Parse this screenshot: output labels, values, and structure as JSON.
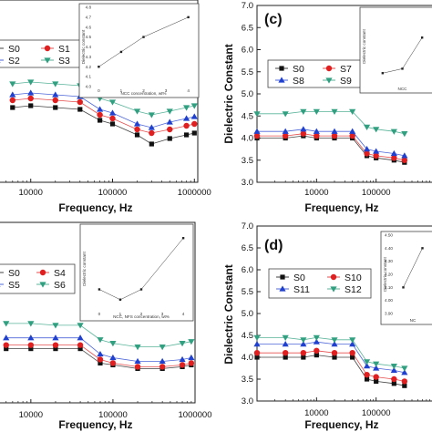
{
  "chart_data": [
    {
      "id": "b",
      "type": "scatter",
      "panel_label": "",
      "xlabel": "Frequency, Hz",
      "ylabel": "",
      "xscale": "log",
      "xlim": [
        4000,
        1100000
      ],
      "ylim": [
        2.0,
        7.0
      ],
      "x_tick_labels": [
        "10000",
        "100000",
        "1000000"
      ],
      "y_tick_labels": [],
      "legend_position": "top-left",
      "series": [
        {
          "name": "S0",
          "marker": "square",
          "color": "#111111",
          "x": [
            6000,
            10000,
            20000,
            40000,
            70000,
            100000,
            200000,
            300000,
            500000,
            800000,
            1000000
          ],
          "y": [
            4.05,
            4.1,
            4.05,
            4.0,
            3.7,
            3.6,
            3.3,
            3.05,
            3.2,
            3.3,
            3.35
          ]
        },
        {
          "name": "S1",
          "marker": "circle",
          "color": "#e02020",
          "x": [
            6000,
            10000,
            20000,
            40000,
            70000,
            100000,
            200000,
            300000,
            500000,
            800000,
            1000000
          ],
          "y": [
            4.25,
            4.3,
            4.25,
            4.2,
            3.85,
            3.75,
            3.45,
            3.35,
            3.45,
            3.55,
            3.6
          ]
        },
        {
          "name": "S2",
          "marker": "triangle",
          "color": "#2040d0",
          "x": [
            6000,
            10000,
            20000,
            40000,
            70000,
            100000,
            200000,
            300000,
            500000,
            800000,
            1000000
          ],
          "y": [
            4.4,
            4.45,
            4.4,
            4.35,
            4.0,
            3.9,
            3.6,
            3.5,
            3.65,
            3.75,
            3.8
          ]
        },
        {
          "name": "S3",
          "marker": "triangle-down",
          "color": "#30a080",
          "x": [
            6000,
            10000,
            20000,
            40000,
            70000,
            100000,
            200000,
            300000,
            500000,
            800000,
            1000000
          ],
          "y": [
            4.7,
            4.75,
            4.7,
            4.65,
            4.3,
            4.2,
            3.95,
            3.85,
            3.95,
            4.05,
            4.1
          ]
        }
      ],
      "inset": {
        "xlabel": "NCC concentration, wt%",
        "ylabel": "Dielectric constant",
        "x": [
          0,
          1,
          2,
          4
        ],
        "y": [
          4.2,
          4.35,
          4.5,
          4.7
        ],
        "xlim": [
          -0.3,
          4.3
        ],
        "ylim": [
          4.0,
          4.8
        ],
        "x_tick_labels": [
          "0",
          "1",
          "2",
          "3",
          "4"
        ],
        "y_tick_labels": [
          "4.0",
          "4.1",
          "4.2",
          "4.3",
          "4.4",
          "4.5",
          "4.6",
          "4.7",
          "4.8"
        ]
      }
    },
    {
      "id": "c",
      "type": "scatter",
      "panel_label": "(c)",
      "xlabel": "Frequency, Hz",
      "ylabel": "Dielectric Constant",
      "xscale": "log",
      "xlim": [
        1000,
        1000000
      ],
      "ylim": [
        3.0,
        7.0
      ],
      "x_tick_labels": [
        "10000",
        "100000"
      ],
      "y_tick_labels": [
        "3.0",
        "3.5",
        "4.0",
        "4.5",
        "5.0",
        "5.5",
        "6.0",
        "6.5",
        "7.0"
      ],
      "legend_position": "center",
      "series": [
        {
          "name": "S0",
          "marker": "square",
          "color": "#111111",
          "x": [
            1000,
            3000,
            6000,
            10000,
            20000,
            40000,
            70000,
            100000,
            200000,
            300000
          ],
          "y": [
            4.0,
            4.0,
            4.05,
            4.0,
            4.0,
            4.0,
            3.6,
            3.55,
            3.5,
            3.45
          ]
        },
        {
          "name": "S7",
          "marker": "circle",
          "color": "#e02020",
          "x": [
            1000,
            3000,
            6000,
            10000,
            20000,
            40000,
            70000,
            100000,
            200000,
            300000
          ],
          "y": [
            4.05,
            4.05,
            4.1,
            4.05,
            4.05,
            4.05,
            3.65,
            3.6,
            3.55,
            3.5
          ]
        },
        {
          "name": "S8",
          "marker": "triangle",
          "color": "#2040d0",
          "x": [
            1000,
            3000,
            6000,
            10000,
            20000,
            40000,
            70000,
            100000,
            200000,
            300000
          ],
          "y": [
            4.15,
            4.15,
            4.2,
            4.15,
            4.15,
            4.15,
            3.75,
            3.7,
            3.65,
            3.6
          ]
        },
        {
          "name": "S9",
          "marker": "triangle-down",
          "color": "#30a080",
          "x": [
            1000,
            3000,
            6000,
            10000,
            20000,
            40000,
            70000,
            100000,
            200000,
            300000
          ],
          "y": [
            4.55,
            4.55,
            4.6,
            4.6,
            4.6,
            4.6,
            4.25,
            4.2,
            4.15,
            4.1
          ]
        }
      ],
      "inset": {
        "xlabel": "NCC",
        "ylabel": "Dielectric constant",
        "x": [
          0,
          1,
          2
        ],
        "y": [
          4.0,
          4.05,
          4.4
        ],
        "xlim": [
          -0.5,
          2.5
        ],
        "ylim": [
          3.9,
          4.7
        ],
        "x_tick_labels": [],
        "y_tick_labels": []
      }
    },
    {
      "id": "left-lower",
      "type": "scatter",
      "panel_label": "",
      "xlabel": "Frequency, Hz",
      "ylabel": "",
      "xscale": "log",
      "xlim": [
        4000,
        1000000
      ],
      "ylim": [
        2.0,
        7.0
      ],
      "x_tick_labels": [
        "10000",
        "100000",
        "1000000"
      ],
      "y_tick_labels": [],
      "legend_position": "top-left",
      "series": [
        {
          "name": "S0",
          "marker": "square",
          "color": "#111111",
          "x": [
            5000,
            10000,
            20000,
            40000,
            70000,
            100000,
            200000,
            400000,
            700000,
            900000
          ],
          "y": [
            3.5,
            3.5,
            3.5,
            3.5,
            3.1,
            3.05,
            2.95,
            2.95,
            3.0,
            3.05
          ]
        },
        {
          "name": "S4",
          "marker": "circle",
          "color": "#e02020",
          "x": [
            5000,
            10000,
            20000,
            40000,
            70000,
            100000,
            200000,
            400000,
            700000,
            900000
          ],
          "y": [
            3.6,
            3.6,
            3.6,
            3.6,
            3.2,
            3.1,
            3.0,
            3.0,
            3.05,
            3.1
          ]
        },
        {
          "name": "S5",
          "marker": "triangle",
          "color": "#2040d0",
          "x": [
            5000,
            10000,
            20000,
            40000,
            70000,
            100000,
            200000,
            400000,
            700000,
            900000
          ],
          "y": [
            3.8,
            3.8,
            3.8,
            3.8,
            3.35,
            3.25,
            3.15,
            3.15,
            3.2,
            3.25
          ]
        },
        {
          "name": "S6",
          "marker": "triangle-down",
          "color": "#30a080",
          "x": [
            5000,
            10000,
            20000,
            40000,
            70000,
            100000,
            200000,
            400000,
            700000,
            900000
          ],
          "y": [
            4.2,
            4.2,
            4.15,
            4.15,
            3.75,
            3.65,
            3.55,
            3.55,
            3.65,
            3.7
          ]
        }
      ],
      "inset": {
        "xlabel": "NCC, NFS concentration, wt%",
        "ylabel": "Dielectric constant",
        "x": [
          0,
          1,
          2,
          4
        ],
        "y": [
          4.1,
          4.0,
          4.1,
          4.6
        ],
        "xlim": [
          -0.3,
          4.3
        ],
        "ylim": [
          3.9,
          4.7
        ],
        "x_tick_labels": [
          "0",
          "1",
          "2",
          "3",
          "4"
        ],
        "y_tick_labels": []
      }
    },
    {
      "id": "d",
      "type": "scatter",
      "panel_label": "(d)",
      "xlabel": "Frequency, Hz",
      "ylabel": "Dielectric Constant",
      "xscale": "log",
      "xlim": [
        1000,
        1000000
      ],
      "ylim": [
        3.0,
        7.0
      ],
      "x_tick_labels": [
        "10000",
        "100000"
      ],
      "y_tick_labels": [
        "3.0",
        "3.5",
        "4.0",
        "4.5",
        "5.0",
        "5.5",
        "6.0",
        "6.5",
        "7.0"
      ],
      "legend_position": "center-left",
      "series": [
        {
          "name": "S0",
          "marker": "square",
          "color": "#111111",
          "x": [
            1000,
            3000,
            6000,
            10000,
            20000,
            40000,
            70000,
            100000,
            200000,
            300000
          ],
          "y": [
            4.0,
            4.0,
            4.0,
            4.05,
            4.0,
            4.0,
            3.5,
            3.45,
            3.4,
            3.35
          ]
        },
        {
          "name": "S10",
          "marker": "circle",
          "color": "#e02020",
          "x": [
            1000,
            3000,
            6000,
            10000,
            20000,
            40000,
            70000,
            100000,
            200000,
            300000
          ],
          "y": [
            4.1,
            4.1,
            4.1,
            4.15,
            4.1,
            4.1,
            3.6,
            3.55,
            3.5,
            3.45
          ]
        },
        {
          "name": "S11",
          "marker": "triangle",
          "color": "#2040d0",
          "x": [
            1000,
            3000,
            6000,
            10000,
            20000,
            40000,
            70000,
            100000,
            200000,
            300000
          ],
          "y": [
            4.3,
            4.3,
            4.3,
            4.35,
            4.3,
            4.3,
            3.8,
            3.75,
            3.7,
            3.65
          ]
        },
        {
          "name": "S12",
          "marker": "triangle-down",
          "color": "#30a080",
          "x": [
            1000,
            3000,
            6000,
            10000,
            20000,
            40000,
            70000,
            100000,
            200000,
            300000
          ],
          "y": [
            4.45,
            4.45,
            4.4,
            4.45,
            4.4,
            4.4,
            3.9,
            3.85,
            3.8,
            3.75
          ]
        }
      ],
      "inset": {
        "xlabel": "NC",
        "ylabel": "Dielectric constant",
        "x": [
          0,
          1
        ],
        "y": [
          4.1,
          4.4
        ],
        "xlim": [
          -0.5,
          1.5
        ],
        "ylim": [
          3.9,
          4.5
        ],
        "x_tick_labels": [],
        "y_tick_labels": [
          "3.90",
          "4.00",
          "4.10",
          "4.20",
          "4.30",
          "4.40",
          "4.50"
        ]
      }
    }
  ]
}
